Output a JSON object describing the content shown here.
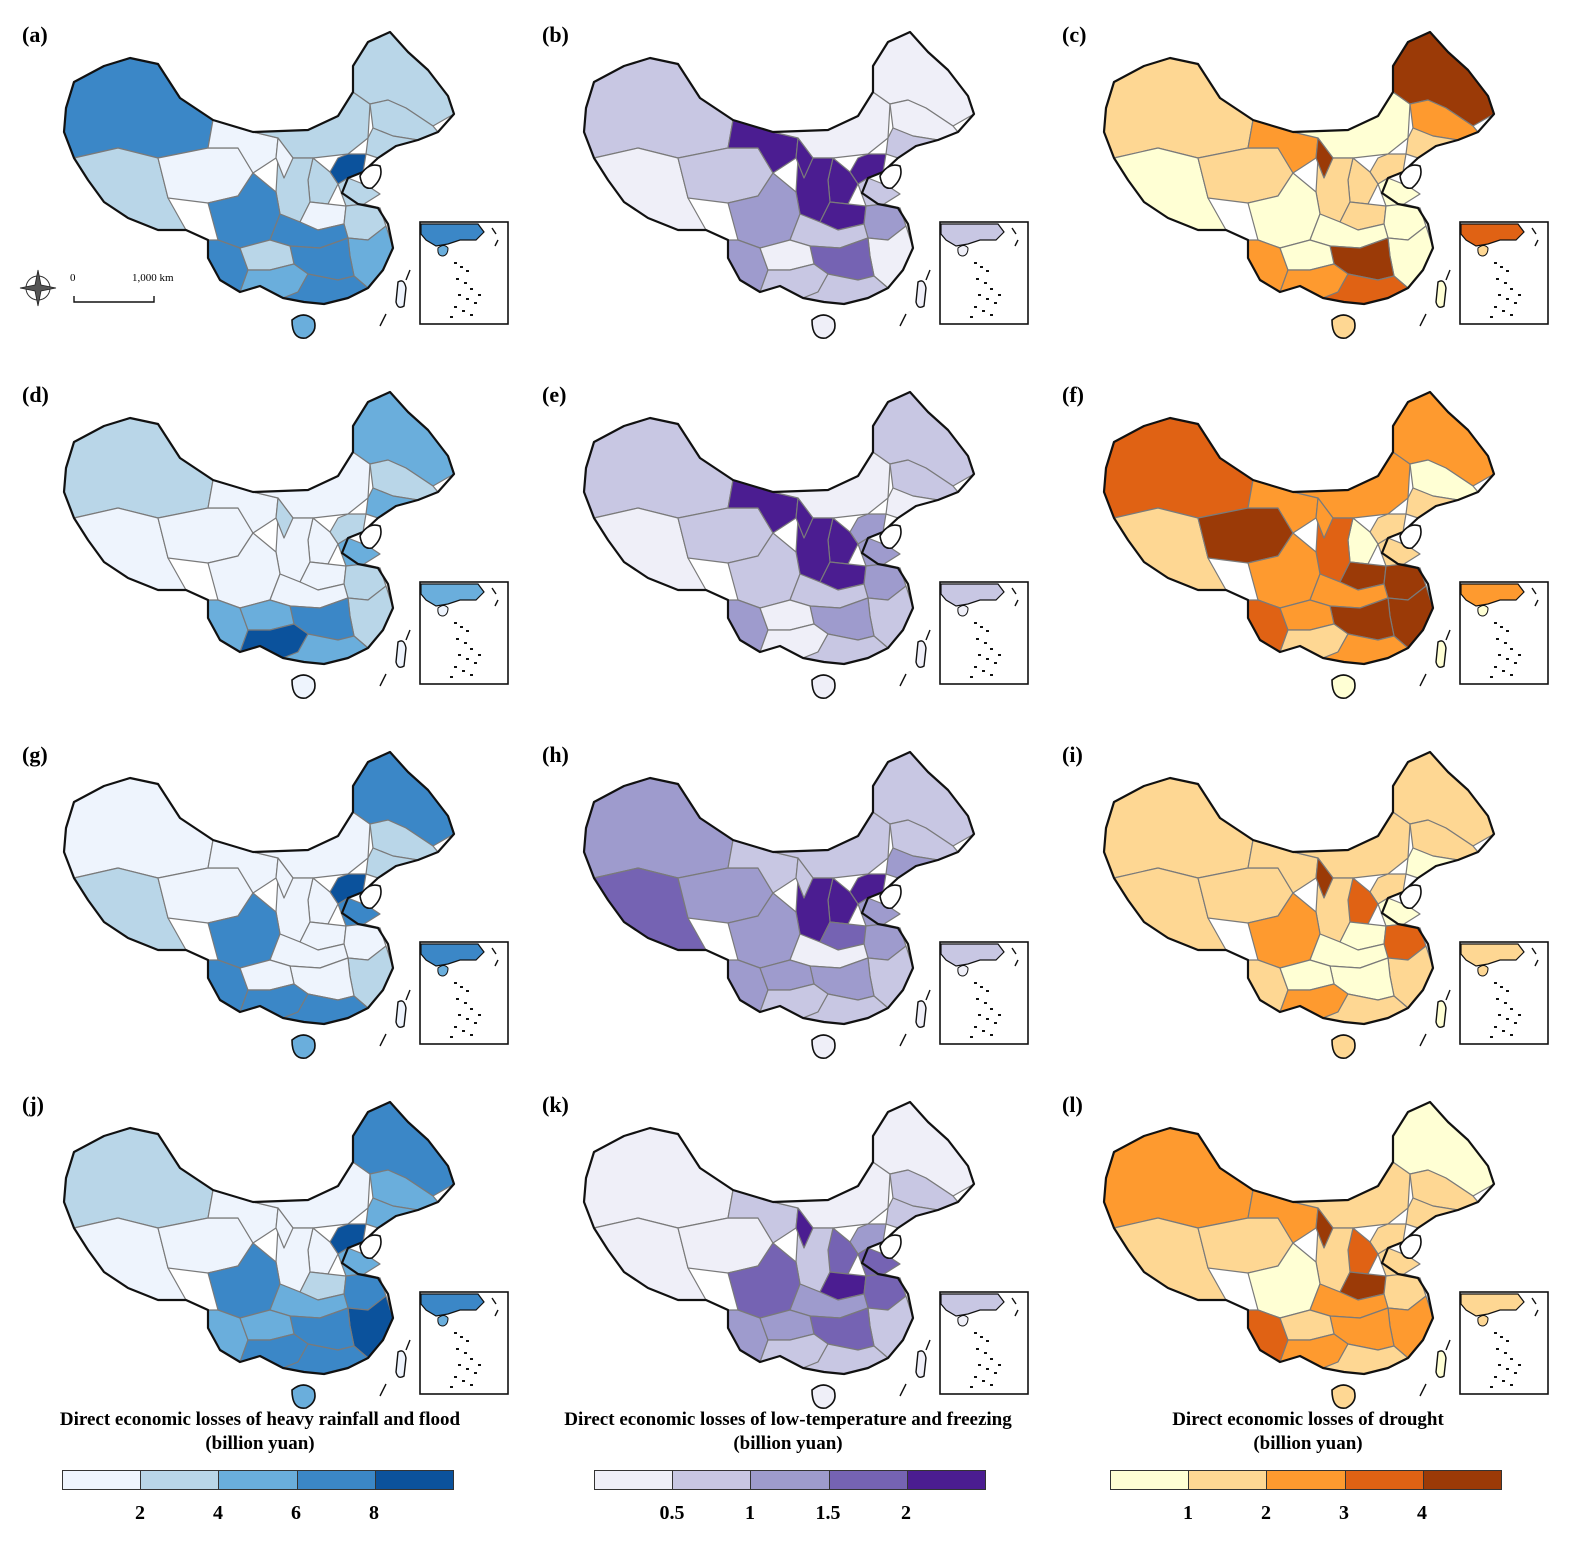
{
  "palettes": {
    "flood": [
      "#eef4fd",
      "#b9d6e8",
      "#6aaedc",
      "#3b87c7",
      "#0b529c"
    ],
    "freeze": [
      "#efeff8",
      "#c8c7e3",
      "#9e9bcd",
      "#7563b3",
      "#4b1d91"
    ],
    "drought": [
      "#ffffd4",
      "#fed793",
      "#fe9a2f",
      "#e06214",
      "#9b3a07"
    ]
  },
  "panels": [
    {
      "label": "(a)",
      "hazard": "flood",
      "scale_bar": {
        "zero": "0",
        "distance": "1,000 km"
      }
    },
    {
      "label": "(b)",
      "hazard": "freeze"
    },
    {
      "label": "(c)",
      "hazard": "drought"
    },
    {
      "label": "(d)",
      "hazard": "flood"
    },
    {
      "label": "(e)",
      "hazard": "freeze"
    },
    {
      "label": "(f)",
      "hazard": "drought"
    },
    {
      "label": "(g)",
      "hazard": "flood"
    },
    {
      "label": "(h)",
      "hazard": "freeze"
    },
    {
      "label": "(i)",
      "hazard": "drought"
    },
    {
      "label": "(j)",
      "hazard": "flood"
    },
    {
      "label": "(k)",
      "hazard": "freeze"
    },
    {
      "label": "(l)",
      "hazard": "drought"
    }
  ],
  "legends": {
    "flood": {
      "title": "Direct economic losses of heavy rainfall and flood",
      "unit": "(billion yuan)",
      "ticks": [
        "2",
        "4",
        "6",
        "8"
      ]
    },
    "freeze": {
      "title": "Direct economic losses of low-temperature and freezing",
      "unit": "(billion yuan)",
      "ticks": [
        "0.5",
        "1",
        "1.5",
        "2"
      ]
    },
    "drought": {
      "title": "Direct economic losses of drought",
      "unit": "(billion yuan)",
      "ticks": [
        "1",
        "2",
        "3",
        "4"
      ]
    }
  }
}
